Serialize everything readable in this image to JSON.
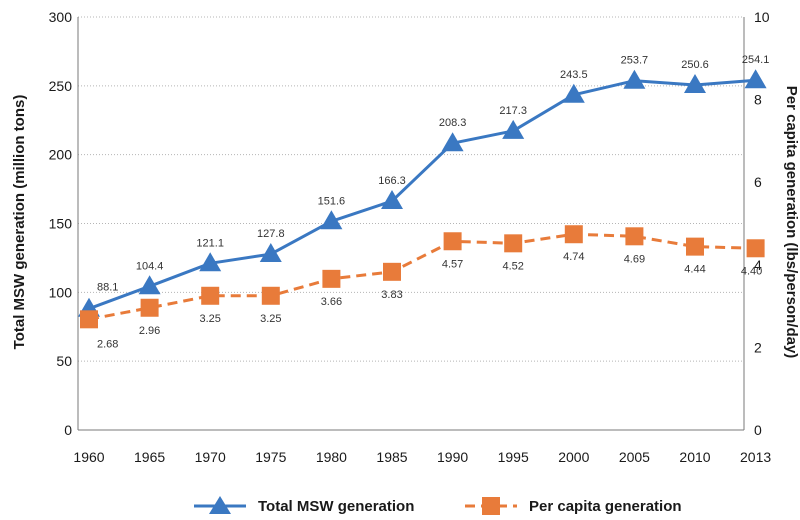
{
  "chart_data": {
    "type": "line",
    "x": [
      "1960",
      "1965",
      "1970",
      "1975",
      "1980",
      "1985",
      "1990",
      "1995",
      "2000",
      "2005",
      "2010",
      "2013"
    ],
    "y_left": {
      "label": "Total MSW generation (million tons)",
      "range": [
        0,
        300
      ],
      "ticks": [
        "0",
        "50",
        "100",
        "150",
        "200",
        "250",
        "300"
      ]
    },
    "y_right": {
      "label": "Per capita generation (lbs/person/day)",
      "range": [
        0,
        10
      ],
      "ticks": [
        "0",
        "2",
        "4",
        "6",
        "8",
        "10"
      ]
    },
    "series": [
      {
        "name": "Total MSW generation",
        "axis": "left",
        "color": "#3a78c2",
        "line_style": "solid",
        "marker": "triangle",
        "values": [
          88.1,
          104.4,
          121.1,
          127.8,
          151.6,
          166.3,
          208.3,
          217.3,
          243.5,
          253.7,
          250.6,
          254.1
        ],
        "labels": [
          "88.1",
          "104.4",
          "121.1",
          "127.8",
          "151.6",
          "166.3",
          "208.3",
          "217.3",
          "243.5",
          "253.7",
          "250.6",
          "254.1"
        ]
      },
      {
        "name": "Per capita generation",
        "axis": "right",
        "color": "#e87b3a",
        "line_style": "dashed",
        "marker": "square",
        "values": [
          2.68,
          2.96,
          3.25,
          3.25,
          3.66,
          3.83,
          4.57,
          4.52,
          4.74,
          4.69,
          4.44,
          4.4
        ],
        "labels": [
          "2.68",
          "2.96",
          "3.25",
          "3.25",
          "3.66",
          "3.83",
          "4.57",
          "4.52",
          "4.74",
          "4.69",
          "4.44",
          "4.40"
        ]
      }
    ],
    "grid": "horizontal dotted",
    "legend_placement": "bottom"
  }
}
